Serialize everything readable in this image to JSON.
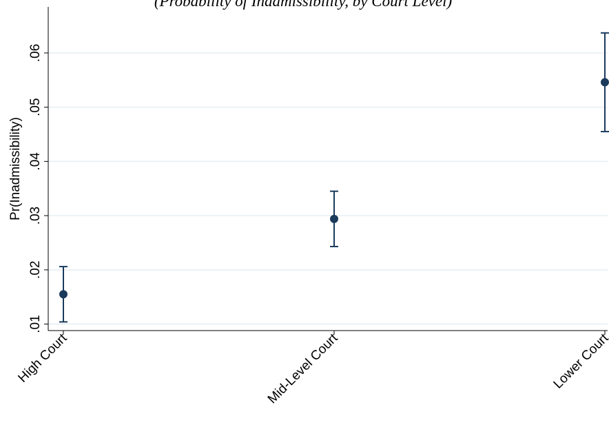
{
  "header": {
    "partial_title": "(Probability of Inadmissibility, by Court Level)"
  },
  "colors": {
    "marker": "#1a3a5c",
    "grid": "#e6eef2",
    "axis": "#000000"
  },
  "chart_data": {
    "type": "scatter",
    "title": "",
    "xlabel": "",
    "ylabel": "Pr(Inadmissibility)",
    "categories": [
      "High Court",
      "Mid-Level Court",
      "Lower Court"
    ],
    "series": [
      {
        "values": [
          0.0155,
          0.0294,
          0.0546
        ],
        "ci_low": [
          0.0104,
          0.0243,
          0.0455
        ],
        "ci_high": [
          0.0206,
          0.0345,
          0.0637
        ]
      }
    ],
    "yticks": [
      0.01,
      0.02,
      0.03,
      0.04,
      0.05,
      0.06
    ],
    "ytick_labels": [
      ".01",
      ".02",
      ".03",
      ".04",
      ".05",
      ".06"
    ],
    "ylim": [
      0.0088,
      0.0685
    ],
    "grid": true,
    "legend": "none"
  }
}
